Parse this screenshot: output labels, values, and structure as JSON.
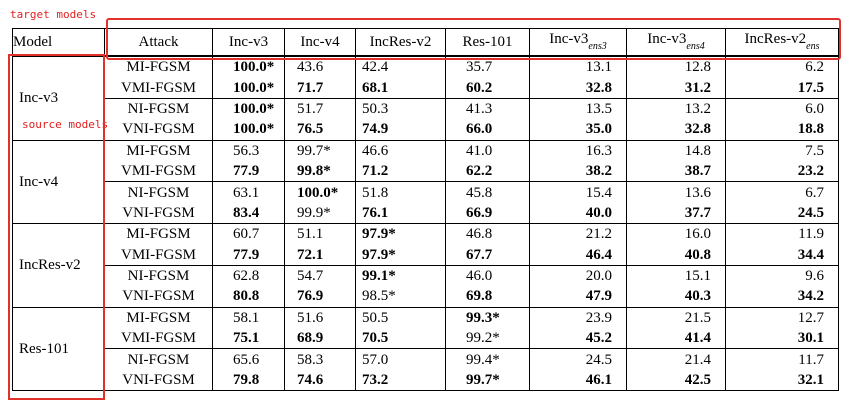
{
  "annotations": {
    "target": "target models",
    "source": "source models"
  },
  "table": {
    "headers": [
      "Model",
      "Attack",
      "Inc-v3",
      "Inc-v4",
      "IncRes-v2",
      "Res-101"
    ],
    "ens_headers": [
      {
        "base": "Inc-v3",
        "sub": "ens3"
      },
      {
        "base": "Inc-v3",
        "sub": "ens4"
      },
      {
        "base": "IncRes-v2",
        "sub": "ens"
      }
    ],
    "groups": [
      {
        "model": "Inc-v3",
        "rows": [
          {
            "attack": "MI-FGSM",
            "cells": [
              [
                "100.0*",
                1
              ],
              [
                "43.6",
                0
              ],
              [
                "42.4",
                0
              ],
              [
                "35.7",
                0
              ],
              [
                "13.1",
                0
              ],
              [
                "12.8",
                0
              ],
              [
                "6.2",
                0
              ]
            ]
          },
          {
            "attack": "VMI-FGSM",
            "cells": [
              [
                "100.0*",
                1
              ],
              [
                "71.7",
                1
              ],
              [
                "68.1",
                1
              ],
              [
                "60.2",
                1
              ],
              [
                "32.8",
                1
              ],
              [
                "31.2",
                1
              ],
              [
                "17.5",
                1
              ]
            ]
          },
          {
            "attack": "NI-FGSM",
            "cells": [
              [
                "100.0*",
                1
              ],
              [
                "51.7",
                0
              ],
              [
                "50.3",
                0
              ],
              [
                "41.3",
                0
              ],
              [
                "13.5",
                0
              ],
              [
                "13.2",
                0
              ],
              [
                "6.0",
                0
              ]
            ]
          },
          {
            "attack": "VNI-FGSM",
            "cells": [
              [
                "100.0*",
                1
              ],
              [
                "76.5",
                1
              ],
              [
                "74.9",
                1
              ],
              [
                "66.0",
                1
              ],
              [
                "35.0",
                1
              ],
              [
                "32.8",
                1
              ],
              [
                "18.8",
                1
              ]
            ]
          }
        ]
      },
      {
        "model": "Inc-v4",
        "rows": [
          {
            "attack": "MI-FGSM",
            "cells": [
              [
                "56.3",
                0
              ],
              [
                "99.7*",
                0
              ],
              [
                "46.6",
                0
              ],
              [
                "41.0",
                0
              ],
              [
                "16.3",
                0
              ],
              [
                "14.8",
                0
              ],
              [
                "7.5",
                0
              ]
            ]
          },
          {
            "attack": "VMI-FGSM",
            "cells": [
              [
                "77.9",
                1
              ],
              [
                "99.8*",
                1
              ],
              [
                "71.2",
                1
              ],
              [
                "62.2",
                1
              ],
              [
                "38.2",
                1
              ],
              [
                "38.7",
                1
              ],
              [
                "23.2",
                1
              ]
            ]
          },
          {
            "attack": "NI-FGSM",
            "cells": [
              [
                "63.1",
                0
              ],
              [
                "100.0*",
                1
              ],
              [
                "51.8",
                0
              ],
              [
                "45.8",
                0
              ],
              [
                "15.4",
                0
              ],
              [
                "13.6",
                0
              ],
              [
                "6.7",
                0
              ]
            ]
          },
          {
            "attack": "VNI-FGSM",
            "cells": [
              [
                "83.4",
                1
              ],
              [
                "99.9*",
                0
              ],
              [
                "76.1",
                1
              ],
              [
                "66.9",
                1
              ],
              [
                "40.0",
                1
              ],
              [
                "37.7",
                1
              ],
              [
                "24.5",
                1
              ]
            ]
          }
        ]
      },
      {
        "model": "IncRes-v2",
        "rows": [
          {
            "attack": "MI-FGSM",
            "cells": [
              [
                "60.7",
                0
              ],
              [
                "51.1",
                0
              ],
              [
                "97.9*",
                1
              ],
              [
                "46.8",
                0
              ],
              [
                "21.2",
                0
              ],
              [
                "16.0",
                0
              ],
              [
                "11.9",
                0
              ]
            ]
          },
          {
            "attack": "VMI-FGSM",
            "cells": [
              [
                "77.9",
                1
              ],
              [
                "72.1",
                1
              ],
              [
                "97.9*",
                1
              ],
              [
                "67.7",
                1
              ],
              [
                "46.4",
                1
              ],
              [
                "40.8",
                1
              ],
              [
                "34.4",
                1
              ]
            ]
          },
          {
            "attack": "NI-FGSM",
            "cells": [
              [
                "62.8",
                0
              ],
              [
                "54.7",
                0
              ],
              [
                "99.1*",
                1
              ],
              [
                "46.0",
                0
              ],
              [
                "20.0",
                0
              ],
              [
                "15.1",
                0
              ],
              [
                "9.6",
                0
              ]
            ]
          },
          {
            "attack": "VNI-FGSM",
            "cells": [
              [
                "80.8",
                1
              ],
              [
                "76.9",
                1
              ],
              [
                "98.5*",
                0
              ],
              [
                "69.8",
                1
              ],
              [
                "47.9",
                1
              ],
              [
                "40.3",
                1
              ],
              [
                "34.2",
                1
              ]
            ]
          }
        ]
      },
      {
        "model": "Res-101",
        "rows": [
          {
            "attack": "MI-FGSM",
            "cells": [
              [
                "58.1",
                0
              ],
              [
                "51.6",
                0
              ],
              [
                "50.5",
                0
              ],
              [
                "99.3*",
                1
              ],
              [
                "23.9",
                0
              ],
              [
                "21.5",
                0
              ],
              [
                "12.7",
                0
              ]
            ]
          },
          {
            "attack": "VMI-FGSM",
            "cells": [
              [
                "75.1",
                1
              ],
              [
                "68.9",
                1
              ],
              [
                "70.5",
                1
              ],
              [
                "99.2*",
                0
              ],
              [
                "45.2",
                1
              ],
              [
                "41.4",
                1
              ],
              [
                "30.1",
                1
              ]
            ]
          },
          {
            "attack": "NI-FGSM",
            "cells": [
              [
                "65.6",
                0
              ],
              [
                "58.3",
                0
              ],
              [
                "57.0",
                0
              ],
              [
                "99.4*",
                0
              ],
              [
                "24.5",
                0
              ],
              [
                "21.4",
                0
              ],
              [
                "11.7",
                0
              ]
            ]
          },
          {
            "attack": "VNI-FGSM",
            "cells": [
              [
                "79.8",
                1
              ],
              [
                "74.6",
                1
              ],
              [
                "73.2",
                1
              ],
              [
                "99.7*",
                1
              ],
              [
                "46.1",
                1
              ],
              [
                "42.5",
                1
              ],
              [
                "32.1",
                1
              ]
            ]
          }
        ]
      }
    ]
  },
  "colors": {
    "annotation": "#e0312b",
    "text": "#000000"
  }
}
